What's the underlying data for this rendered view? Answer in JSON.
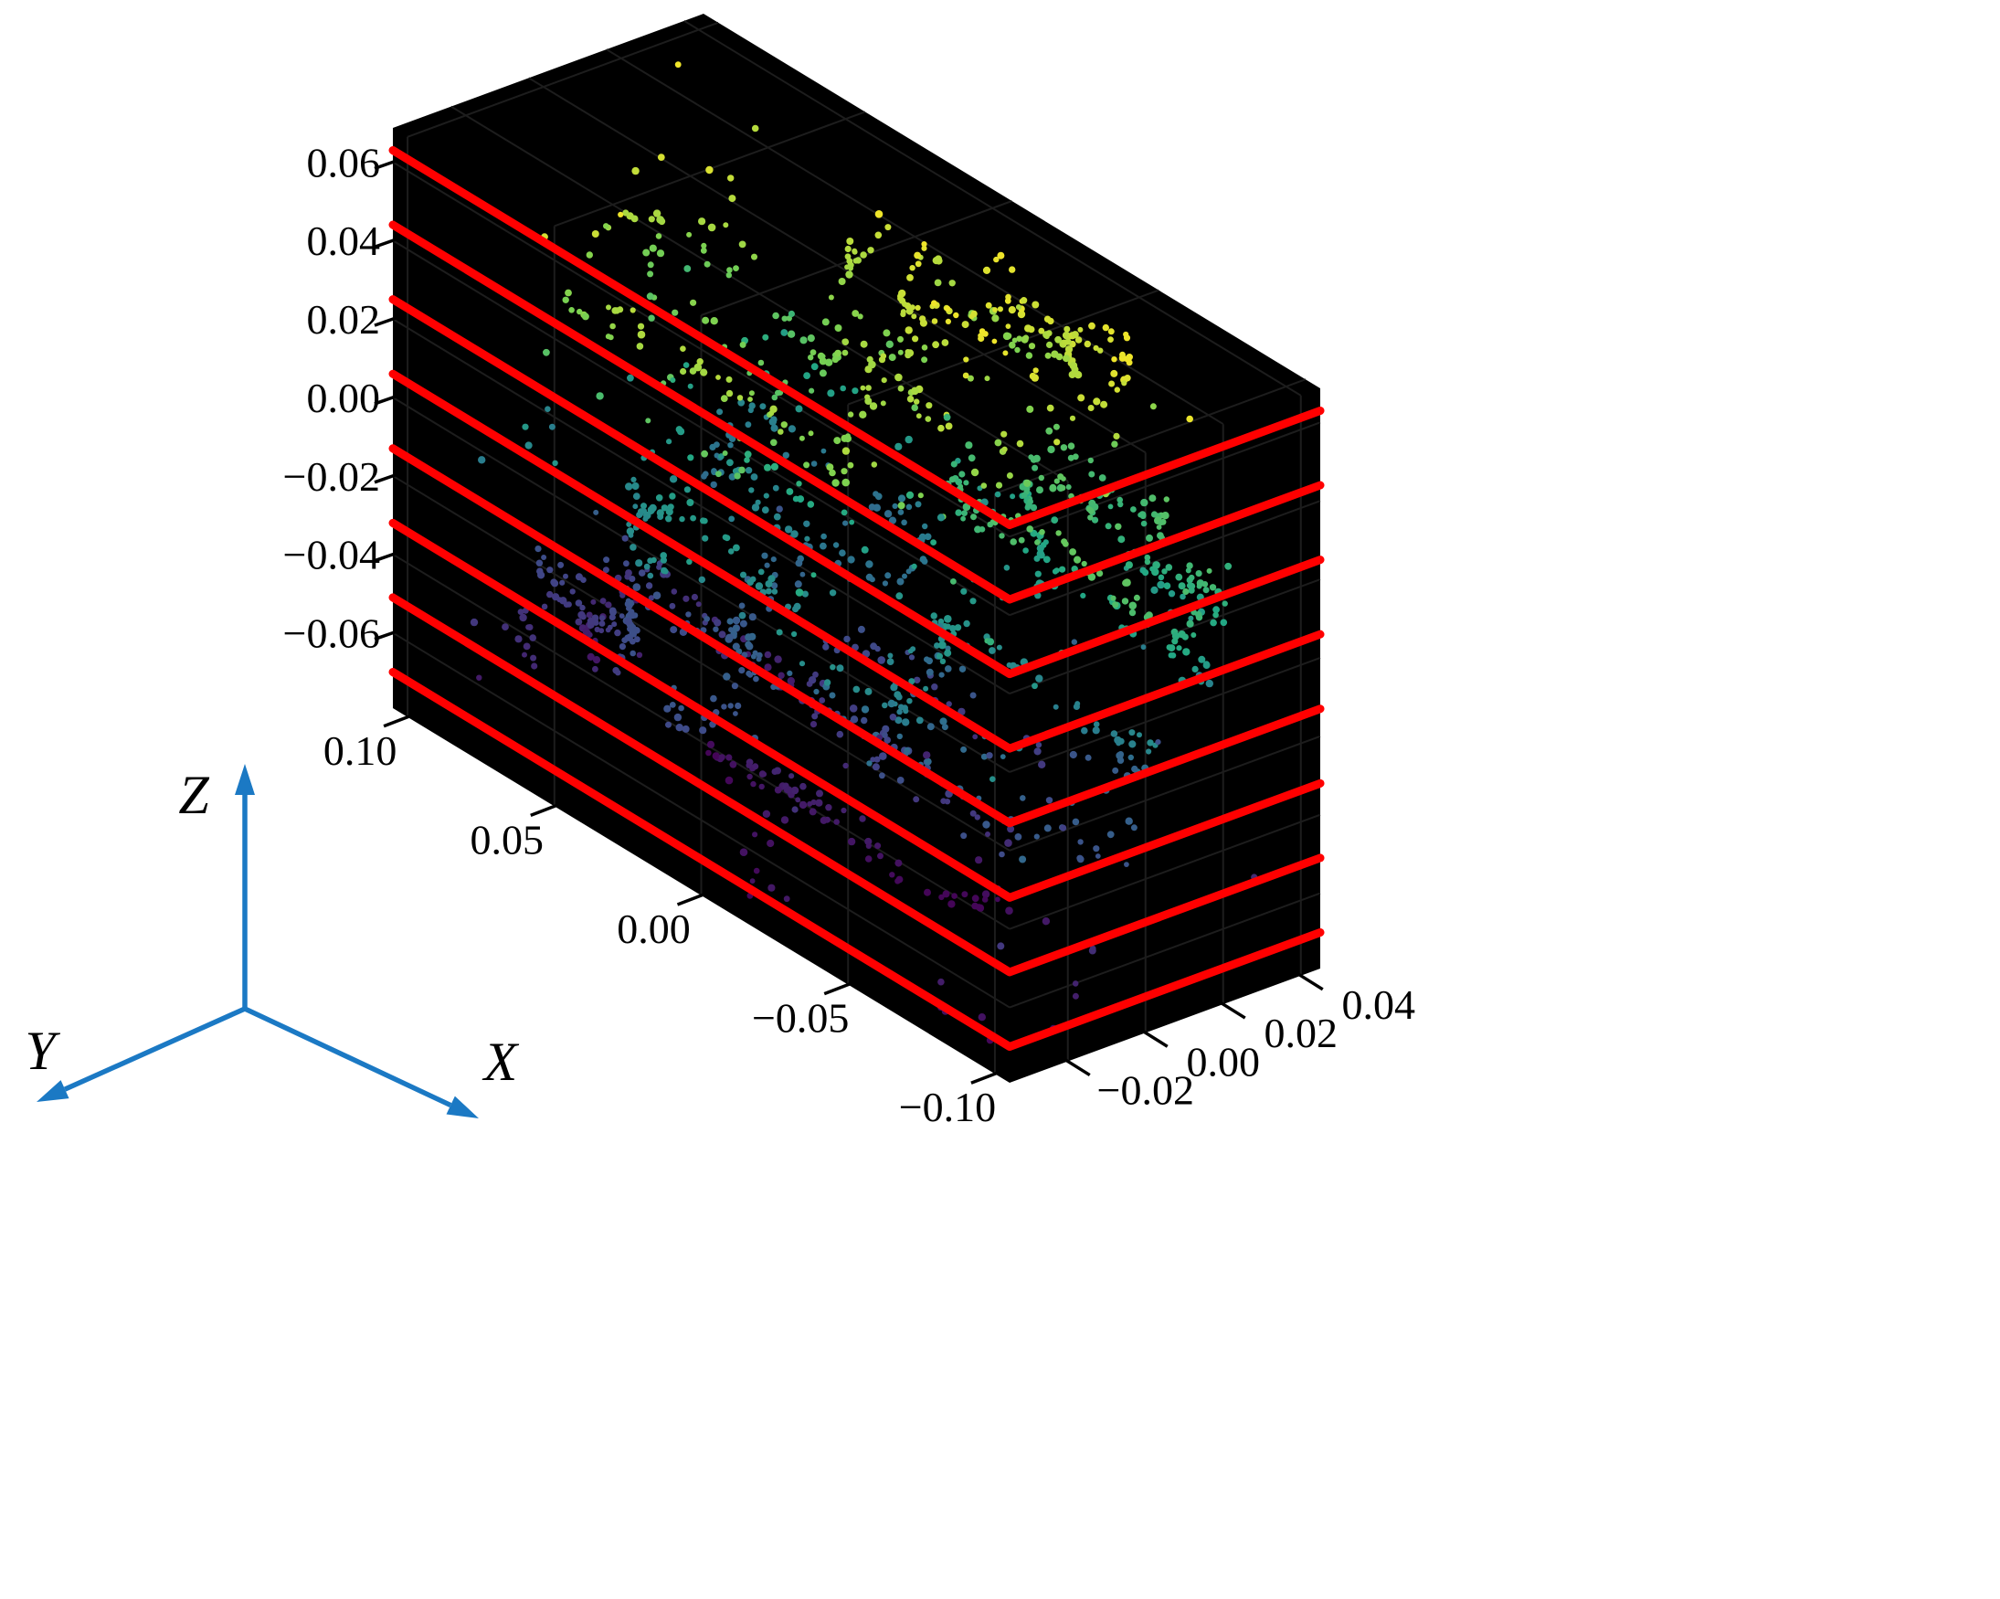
{
  "figure": {
    "bg": "#ffffff",
    "box_color": "#000000",
    "grid_color": "#1d1d1d",
    "tick_color": "#000000",
    "triad_color": "#1b79c4"
  },
  "chart_data": {
    "type": "scatter",
    "projection": "3d",
    "description": "3D point cloud inside a black box, points colored by height with a viridis colormap (purple/blue low, green middle, yellow high), crossed by 8 parallel red horizontal slice lines at constant Z levels; blue XYZ orientation triad at lower left",
    "axes": {
      "x": {
        "label": "X",
        "tick_labels": [
          "0.10",
          "0.05",
          "0.00",
          "−0.05",
          "−0.10"
        ],
        "tick_values": [
          0.1,
          0.05,
          0.0,
          -0.05,
          -0.1
        ],
        "range": [
          -0.105,
          0.105
        ]
      },
      "y": {
        "label": "Y",
        "tick_labels": [
          "−0.02",
          "0.00",
          "0.02",
          "0.04"
        ],
        "tick_values": [
          -0.02,
          0.0,
          0.02,
          0.04
        ],
        "range": [
          -0.035,
          0.045
        ]
      },
      "z": {
        "label": "Z",
        "tick_labels": [
          "0.06",
          "0.04",
          "0.02",
          "0.00",
          "−0.02",
          "−0.04",
          "−0.06"
        ],
        "tick_values": [
          0.06,
          0.04,
          0.02,
          0.0,
          -0.02,
          -0.04,
          -0.06
        ],
        "range": [
          -0.0792,
          0.0687
        ]
      }
    },
    "slice_lines": {
      "color": "#ff0000",
      "width": 9,
      "z_levels": [
        0.063,
        0.044,
        0.025,
        0.006,
        -0.013,
        -0.032,
        -0.051,
        -0.07
      ]
    },
    "point_cloud": {
      "seed": 11,
      "rings": 26,
      "points_per_ring_min": 35,
      "points_per_ring_max": 70,
      "extra_points": 130,
      "marker_radius_min": 2.9,
      "marker_radius_max": 4.3,
      "color_by": "z",
      "colormap": "viridis",
      "colormap_stops": [
        [
          0.0,
          "#440154"
        ],
        [
          0.2,
          "#414487"
        ],
        [
          0.4,
          "#2a788e"
        ],
        [
          0.6,
          "#22a884"
        ],
        [
          0.8,
          "#7ad151"
        ],
        [
          1.0,
          "#fde725"
        ]
      ]
    }
  }
}
